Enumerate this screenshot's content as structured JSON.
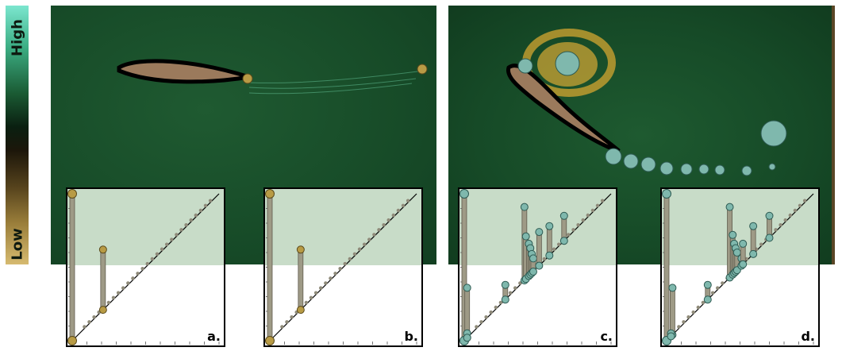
{
  "colorbar": {
    "high_label": "High",
    "low_label": "Low"
  },
  "colors": {
    "field_green": "#174b28",
    "airfoil_fill": "#9b7a5c",
    "gold": "#b89b45",
    "teal": "#7fb8ad",
    "band": "#c8dcc8",
    "bar": "#9e9a86"
  },
  "diagrams": [
    {
      "letter": "a.",
      "glyph": "gold",
      "bars": [
        [
          0.0,
          1.0
        ],
        [
          0.21,
          0.62
        ]
      ]
    },
    {
      "letter": "b.",
      "glyph": "gold",
      "bars": [
        [
          0.0,
          1.0
        ],
        [
          0.21,
          0.62
        ]
      ]
    },
    {
      "letter": "c.",
      "glyph": "teal",
      "bars": [
        [
          0.0,
          1.0
        ],
        [
          0.02,
          0.36
        ],
        [
          0.28,
          0.38
        ],
        [
          0.41,
          0.91
        ],
        [
          0.42,
          0.71
        ],
        [
          0.44,
          0.66
        ],
        [
          0.45,
          0.63
        ],
        [
          0.46,
          0.59
        ],
        [
          0.47,
          0.56
        ],
        [
          0.51,
          0.74
        ],
        [
          0.58,
          0.78
        ],
        [
          0.68,
          0.85
        ],
        [
          0.02,
          0.05
        ]
      ]
    },
    {
      "letter": "d.",
      "glyph": "teal",
      "bars": [
        [
          0.0,
          1.0
        ],
        [
          0.04,
          0.36
        ],
        [
          0.28,
          0.38
        ],
        [
          0.43,
          0.91
        ],
        [
          0.45,
          0.72
        ],
        [
          0.46,
          0.66
        ],
        [
          0.47,
          0.63
        ],
        [
          0.48,
          0.6
        ],
        [
          0.51,
          0.56
        ],
        [
          0.52,
          0.66
        ],
        [
          0.59,
          0.78
        ],
        [
          0.7,
          0.85
        ],
        [
          0.03,
          0.05
        ]
      ]
    }
  ]
}
